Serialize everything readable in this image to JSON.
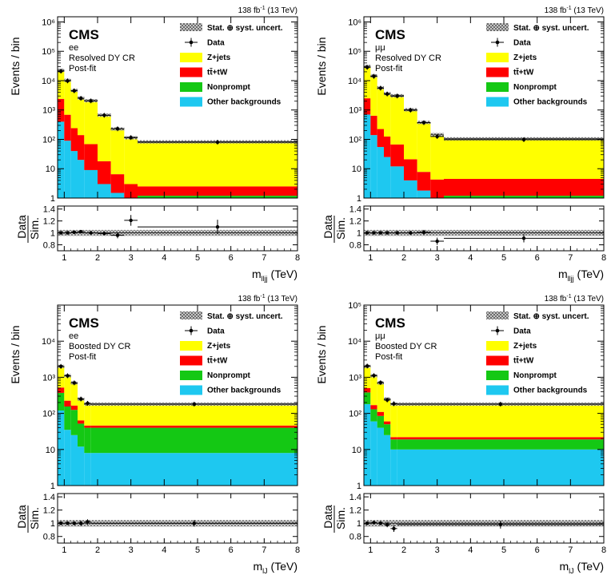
{
  "colors": {
    "zjets": "#ffff00",
    "ttbar_tw": "#ff0000",
    "nonprompt": "#14c814",
    "other": "#1ec8f0",
    "data": "#000000",
    "uncertainty_band": "hatched-grey"
  },
  "chart_data": [
    {
      "type": "area",
      "subtype": "stacked-histogram-with-ratio",
      "experiment": "CMS",
      "channel": "ee",
      "region": "Resolved DY CR",
      "fit": "Post-fit",
      "lumi": "138 fb",
      "lumi_exp": "-1",
      "energy": "(13 TeV)",
      "ylabel": "Events / bin",
      "xlabel": "m",
      "xlabel_sub": "lljj",
      "xlabel_unit": "(TeV)",
      "ratio_label_top": "Data",
      "ratio_label_bottom": "Sim.",
      "yscale": "log",
      "ylim": [
        1,
        1500000
      ],
      "xlim": [
        0.8,
        8
      ],
      "x_ticks": [
        "1",
        "2",
        "3",
        "4",
        "5",
        "6",
        "7",
        "8"
      ],
      "y_ticks": [
        "1",
        "10",
        "10²",
        "10³",
        "10⁴",
        "10⁵",
        "10⁶"
      ],
      "ratio_ylim": [
        0.7,
        1.45
      ],
      "ratio_ticks": [
        "0.8",
        "1",
        "1.2",
        "1.4"
      ],
      "legend": [
        "Stat. ⊕ syst. uncert.",
        "Data",
        "Z+jets",
        "tt̄+tW",
        "Nonprompt",
        "Other backgrounds"
      ],
      "bin_edges": [
        0.8,
        1.0,
        1.2,
        1.4,
        1.6,
        2.0,
        2.4,
        2.8,
        3.2,
        8.0
      ],
      "series": [
        {
          "name": "Other backgrounds",
          "values": [
            400,
            90,
            40,
            20,
            9,
            3,
            1.5,
            1,
            1
          ]
        },
        {
          "name": "Nonprompt",
          "values": [
            0,
            0,
            0,
            0,
            0,
            0,
            0,
            0,
            0.2
          ]
        },
        {
          "name": "tt̄+tW",
          "values": [
            2000,
            600,
            200,
            120,
            60,
            15,
            5,
            2,
            1.3
          ]
        },
        {
          "name": "Z+jets",
          "values": [
            20000,
            9500,
            4400,
            2400,
            2000,
            650,
            220,
            110,
            80
          ]
        }
      ],
      "data_points": {
        "x": [
          0.9,
          1.1,
          1.3,
          1.5,
          1.8,
          2.2,
          2.6,
          3.0,
          5.6
        ],
        "y": [
          21000,
          9800,
          4500,
          2500,
          2050,
          660,
          230,
          115,
          80
        ]
      },
      "ratio": {
        "x": [
          0.9,
          1.1,
          1.3,
          1.5,
          1.8,
          2.2,
          2.6,
          3.0,
          5.6
        ],
        "y": [
          1.0,
          1.0,
          1.01,
          1.02,
          1.0,
          0.99,
          0.96,
          1.21,
          1.1
        ],
        "err": [
          0.01,
          0.01,
          0.01,
          0.02,
          0.02,
          0.03,
          0.05,
          0.09,
          0.12
        ]
      }
    },
    {
      "type": "area",
      "subtype": "stacked-histogram-with-ratio",
      "experiment": "CMS",
      "channel": "μμ",
      "region": "Resolved DY CR",
      "fit": "Post-fit",
      "lumi": "138 fb",
      "lumi_exp": "-1",
      "energy": "(13 TeV)",
      "ylabel": "Events / bin",
      "xlabel": "m",
      "xlabel_sub": "lljj",
      "xlabel_unit": "(TeV)",
      "ratio_label_top": "Data",
      "ratio_label_bottom": "Sim.",
      "yscale": "log",
      "ylim": [
        1,
        1500000
      ],
      "xlim": [
        0.8,
        8
      ],
      "x_ticks": [
        "1",
        "2",
        "3",
        "4",
        "5",
        "6",
        "7",
        "8"
      ],
      "y_ticks": [
        "1",
        "10",
        "10²",
        "10³",
        "10⁴",
        "10⁵",
        "10⁶"
      ],
      "ratio_ylim": [
        0.7,
        1.45
      ],
      "ratio_ticks": [
        "0.8",
        "1",
        "1.2",
        "1.4"
      ],
      "legend": [
        "Stat. ⊕ syst. uncert.",
        "Data",
        "Z+jets",
        "tt̄+tW",
        "Nonprompt",
        "Other backgrounds"
      ],
      "bin_edges": [
        0.8,
        1.0,
        1.2,
        1.4,
        1.6,
        2.0,
        2.4,
        2.8,
        3.2,
        8.0
      ],
      "series": [
        {
          "name": "Other backgrounds",
          "values": [
            700,
            140,
            55,
            25,
            12,
            4,
            1.8,
            1,
            1
          ]
        },
        {
          "name": "Nonprompt",
          "values": [
            0,
            0,
            0,
            0,
            0,
            0,
            0,
            0,
            0.2
          ]
        },
        {
          "name": "tt̄+tW",
          "values": [
            1800,
            500,
            170,
            100,
            55,
            17,
            6,
            3.3,
            3.3
          ]
        },
        {
          "name": "Z+jets",
          "values": [
            28000,
            14000,
            5500,
            3500,
            3000,
            1000,
            370,
            140,
            100
          ]
        }
      ],
      "data_points": {
        "x": [
          0.9,
          1.1,
          1.3,
          1.5,
          1.8,
          2.2,
          2.6,
          3.0,
          5.6
        ],
        "y": [
          28500,
          14000,
          5550,
          3500,
          3000,
          990,
          370,
          125,
          98
        ]
      },
      "ratio": {
        "x": [
          0.9,
          1.1,
          1.3,
          1.5,
          1.8,
          2.2,
          2.6,
          3.0,
          5.6
        ],
        "y": [
          1.0,
          1.0,
          1.0,
          1.0,
          1.0,
          1.0,
          1.01,
          0.86,
          0.91
        ],
        "err": [
          0.01,
          0.01,
          0.01,
          0.01,
          0.02,
          0.03,
          0.04,
          0.06,
          0.07
        ]
      }
    },
    {
      "type": "area",
      "subtype": "stacked-histogram-with-ratio",
      "experiment": "CMS",
      "channel": "ee",
      "region": "Boosted DY CR",
      "fit": "Post-fit",
      "lumi": "138 fb",
      "lumi_exp": "-1",
      "energy": "(13 TeV)",
      "ylabel": "Events / bin",
      "xlabel": "m",
      "xlabel_sub": "lJ",
      "xlabel_unit": "(TeV)",
      "ratio_label_top": "Data",
      "ratio_label_bottom": "Sim.",
      "yscale": "log",
      "ylim": [
        1,
        100000
      ],
      "xlim": [
        0.8,
        8
      ],
      "x_ticks": [
        "1",
        "2",
        "3",
        "4",
        "5",
        "6",
        "7",
        "8"
      ],
      "y_ticks": [
        "1",
        "10",
        "10²",
        "10³",
        "10⁴"
      ],
      "ratio_ylim": [
        0.7,
        1.45
      ],
      "ratio_ticks": [
        "0.8",
        "1",
        "1.2",
        "1.4"
      ],
      "legend": [
        "Stat. ⊕ syst. uncert.",
        "Data",
        "Z+jets",
        "tt̄+tW",
        "Nonprompt",
        "Other backgrounds"
      ],
      "bin_edges": [
        0.8,
        1.0,
        1.2,
        1.4,
        1.6,
        1.8,
        8.0
      ],
      "series": [
        {
          "name": "Other backgrounds",
          "values": [
            120,
            35,
            25,
            12,
            8,
            8
          ]
        },
        {
          "name": "Nonprompt",
          "values": [
            250,
            120,
            100,
            40,
            32,
            32
          ]
        },
        {
          "name": "tt̄+tW",
          "values": [
            150,
            70,
            40,
            12,
            6,
            6
          ]
        },
        {
          "name": "Z+jets",
          "values": [
            1480,
            875,
            535,
            186,
            134,
            134
          ]
        }
      ],
      "data_points": {
        "x": [
          0.9,
          1.1,
          1.3,
          1.5,
          1.7,
          4.9
        ],
        "y": [
          2000,
          1100,
          700,
          250,
          190,
          180
        ]
      },
      "ratio": {
        "x": [
          0.9,
          1.1,
          1.3,
          1.5,
          1.7,
          4.9
        ],
        "y": [
          1.0,
          1.0,
          1.0,
          1.0,
          1.02,
          1.0
        ],
        "err": [
          0.02,
          0.02,
          0.03,
          0.04,
          0.04,
          0.05
        ]
      }
    },
    {
      "type": "area",
      "subtype": "stacked-histogram-with-ratio",
      "experiment": "CMS",
      "channel": "μμ",
      "region": "Boosted DY CR",
      "fit": "Post-fit",
      "lumi": "138 fb",
      "lumi_exp": "-1",
      "energy": "(13 TeV)",
      "ylabel": "Events / bin",
      "xlabel": "m",
      "xlabel_sub": "lJ",
      "xlabel_unit": "(TeV)",
      "ratio_label_top": "Data",
      "ratio_label_bottom": "Sim.",
      "yscale": "log",
      "ylim": [
        1,
        100000
      ],
      "xlim": [
        0.8,
        8
      ],
      "x_ticks": [
        "1",
        "2",
        "3",
        "4",
        "5",
        "6",
        "7",
        "8"
      ],
      "y_ticks": [
        "1",
        "10",
        "10²",
        "10³",
        "10⁴",
        "10⁵"
      ],
      "ratio_ylim": [
        0.7,
        1.45
      ],
      "ratio_ticks": [
        "0.8",
        "1",
        "1.2",
        "1.4"
      ],
      "legend": [
        "Stat. ⊕ syst. uncert.",
        "Data",
        "Z+jets",
        "tt̄+tW",
        "Nonprompt",
        "Other backgrounds"
      ],
      "bin_edges": [
        0.8,
        1.0,
        1.2,
        1.4,
        1.6,
        1.8,
        8.0
      ],
      "series": [
        {
          "name": "Other backgrounds",
          "values": [
            180,
            60,
            40,
            25,
            10,
            10
          ]
        },
        {
          "name": "Nonprompt",
          "values": [
            200,
            70,
            45,
            25,
            9,
            9
          ]
        },
        {
          "name": "tt̄+tW",
          "values": [
            120,
            40,
            25,
            10,
            3,
            3
          ]
        },
        {
          "name": "Z+jets",
          "values": [
            1500,
            930,
            590,
            190,
            158,
            158
          ]
        }
      ],
      "data_points": {
        "x": [
          0.9,
          1.1,
          1.3,
          1.5,
          1.7,
          4.9
        ],
        "y": [
          2050,
          1110,
          710,
          235,
          185,
          180
        ]
      },
      "ratio": {
        "x": [
          0.9,
          1.1,
          1.3,
          1.5,
          1.7,
          4.9
        ],
        "y": [
          1.0,
          1.01,
          1.0,
          0.98,
          0.92,
          0.98
        ],
        "err": [
          0.02,
          0.02,
          0.03,
          0.04,
          0.05,
          0.06
        ]
      }
    }
  ]
}
